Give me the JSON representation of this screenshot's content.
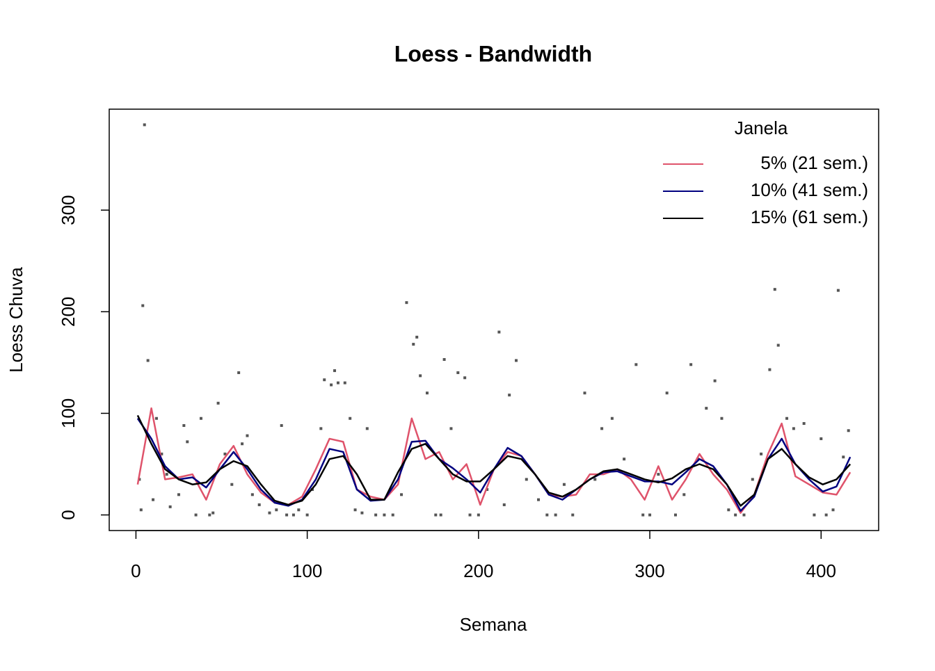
{
  "chart_data": {
    "type": "scatter",
    "title": "Loess - Bandwidth",
    "x_label": "Semana",
    "y_label": "Loess Chuva",
    "xlim": [
      -15.6,
      433.6
    ],
    "ylim": [
      -15.36,
      399.36
    ],
    "xticks": [
      0,
      100,
      200,
      300,
      400
    ],
    "yticks": [
      0,
      100,
      200,
      300
    ],
    "legend": "topright",
    "legend_title": "Janela",
    "points": {
      "color": "#555555",
      "x": [
        5,
        4,
        7,
        2,
        3,
        10,
        12,
        15,
        18,
        20,
        25,
        28,
        30,
        35,
        38,
        43,
        45,
        48,
        52,
        56,
        60,
        62,
        65,
        68,
        72,
        78,
        82,
        85,
        88,
        92,
        95,
        100,
        103,
        108,
        110,
        114,
        116,
        118,
        122,
        125,
        128,
        132,
        135,
        140,
        145,
        150,
        155,
        158,
        162,
        164,
        166,
        170,
        175,
        178,
        180,
        184,
        188,
        192,
        195,
        200,
        205,
        212,
        215,
        218,
        222,
        228,
        235,
        240,
        245,
        250,
        255,
        262,
        268,
        272,
        278,
        285,
        292,
        296,
        300,
        305,
        310,
        315,
        320,
        324,
        328,
        333,
        338,
        342,
        346,
        350,
        355,
        360,
        365,
        370,
        373,
        375,
        380,
        384,
        390,
        396,
        400,
        403,
        407,
        410,
        413,
        416
      ],
      "values": [
        384,
        206,
        152,
        35,
        5,
        15,
        95,
        60,
        40,
        8,
        20,
        88,
        72,
        0,
        95,
        0,
        2,
        110,
        60,
        30,
        140,
        70,
        78,
        20,
        10,
        2,
        5,
        88,
        0,
        0,
        5,
        0,
        25,
        85,
        133,
        128,
        142,
        130,
        130,
        95,
        5,
        2,
        85,
        0,
        0,
        0,
        20,
        209,
        168,
        175,
        137,
        120,
        0,
        0,
        153,
        85,
        140,
        135,
        0,
        0,
        25,
        180,
        10,
        118,
        152,
        35,
        15,
        0,
        0,
        30,
        0,
        120,
        35,
        85,
        95,
        55,
        148,
        0,
        0,
        40,
        120,
        0,
        20,
        148,
        55,
        105,
        132,
        95,
        5,
        0,
        0,
        35,
        60,
        143,
        222,
        167,
        95,
        85,
        90,
        0,
        75,
        0,
        5,
        221,
        57,
        83
      ]
    },
    "x": [
      1,
      9,
      17,
      25,
      33,
      41,
      49,
      57,
      65,
      73,
      81,
      89,
      97,
      105,
      113,
      121,
      129,
      137,
      145,
      153,
      161,
      169,
      177,
      185,
      193,
      201,
      209,
      217,
      225,
      233,
      241,
      249,
      257,
      265,
      273,
      281,
      289,
      297,
      305,
      313,
      321,
      329,
      337,
      345,
      353,
      361,
      369,
      377,
      385,
      393,
      401,
      409,
      417
    ],
    "series": [
      {
        "name": "5% (21 sem.)",
        "color": "#DF536B",
        "values": [
          30,
          105,
          35,
          37,
          40,
          15,
          50,
          68,
          40,
          22,
          12,
          10,
          18,
          45,
          75,
          72,
          25,
          18,
          15,
          30,
          95,
          55,
          62,
          35,
          50,
          10,
          45,
          62,
          58,
          40,
          20,
          18,
          20,
          40,
          40,
          45,
          35,
          15,
          48,
          15,
          35,
          60,
          40,
          25,
          2,
          20,
          60,
          90,
          38,
          30,
          22,
          20,
          42
        ]
      },
      {
        "name": "10% (41 sem.)",
        "color": "#000080",
        "values": [
          95,
          75,
          48,
          35,
          37,
          27,
          45,
          62,
          45,
          25,
          12,
          9,
          15,
          35,
          65,
          62,
          25,
          14,
          15,
          35,
          72,
          73,
          55,
          46,
          35,
          22,
          45,
          66,
          58,
          40,
          20,
          15,
          25,
          35,
          42,
          43,
          38,
          33,
          33,
          30,
          42,
          55,
          48,
          30,
          4,
          18,
          55,
          75,
          50,
          35,
          23,
          28,
          57
        ]
      },
      {
        "name": "15% (61 sem.)",
        "color": "#000000",
        "values": [
          98,
          70,
          45,
          35,
          30,
          32,
          45,
          53,
          48,
          30,
          14,
          10,
          14,
          30,
          55,
          58,
          40,
          15,
          15,
          42,
          65,
          70,
          55,
          40,
          33,
          33,
          45,
          58,
          55,
          40,
          22,
          18,
          25,
          35,
          43,
          45,
          40,
          35,
          32,
          36,
          45,
          50,
          45,
          30,
          9,
          20,
          55,
          65,
          50,
          37,
          30,
          35,
          50
        ]
      }
    ]
  }
}
